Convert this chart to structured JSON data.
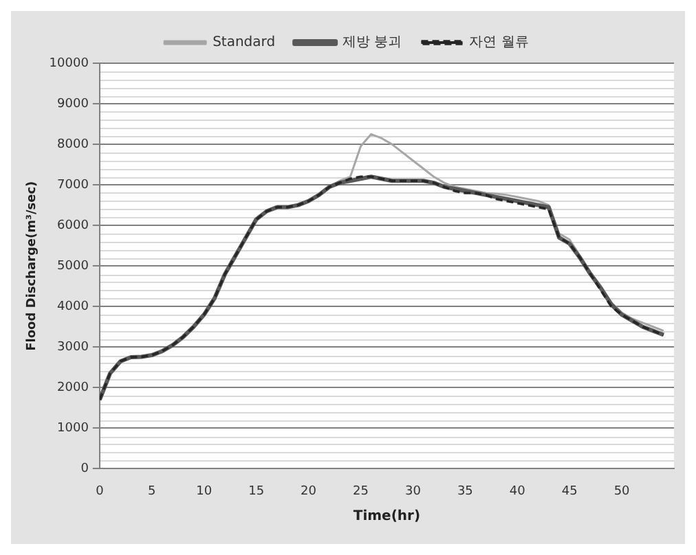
{
  "chart_data": {
    "type": "line",
    "xlabel": "Time(hr)",
    "ylabel": "Flood Discharge(m³/sec)",
    "x": [
      0,
      1,
      2,
      3,
      4,
      5,
      6,
      7,
      8,
      9,
      10,
      11,
      12,
      13,
      14,
      15,
      16,
      17,
      18,
      19,
      20,
      21,
      22,
      23,
      24,
      25,
      26,
      27,
      28,
      29,
      30,
      31,
      32,
      33,
      34,
      35,
      36,
      37,
      38,
      39,
      40,
      41,
      42,
      43,
      44,
      45,
      46,
      47,
      48,
      49,
      50,
      51,
      52,
      53,
      54
    ],
    "series": [
      {
        "name": "Standard",
        "color": "#a6a6a6",
        "line_style": "solid",
        "values": [
          1700,
          2350,
          2650,
          2750,
          2760,
          2800,
          2900,
          3050,
          3250,
          3500,
          3800,
          4200,
          4800,
          5250,
          5700,
          6150,
          6350,
          6450,
          6450,
          6500,
          6600,
          6750,
          6950,
          7100,
          7200,
          7950,
          8250,
          8150,
          8000,
          7800,
          7600,
          7400,
          7200,
          7050,
          6950,
          6900,
          6850,
          6800,
          6780,
          6750,
          6700,
          6650,
          6600,
          6500,
          5800,
          5650,
          5250,
          4850,
          4500,
          4100,
          3850,
          3700,
          3600,
          3500,
          3400
        ]
      },
      {
        "name": "제방 붕괴",
        "color": "#595959",
        "line_style": "solid",
        "values": [
          1700,
          2350,
          2650,
          2750,
          2760,
          2800,
          2900,
          3050,
          3250,
          3500,
          3800,
          4200,
          4800,
          5250,
          5700,
          6150,
          6350,
          6450,
          6450,
          6500,
          6600,
          6750,
          6950,
          7050,
          7100,
          7150,
          7200,
          7150,
          7100,
          7100,
          7100,
          7100,
          7050,
          6950,
          6900,
          6850,
          6800,
          6750,
          6700,
          6650,
          6600,
          6550,
          6500,
          6450,
          5700,
          5550,
          5200,
          4800,
          4450,
          4050,
          3800,
          3650,
          3500,
          3400,
          3300
        ]
      },
      {
        "name": "자연 월류",
        "color": "#262626",
        "line_style": "dashed",
        "values": [
          1700,
          2350,
          2650,
          2750,
          2760,
          2800,
          2900,
          3050,
          3250,
          3500,
          3800,
          4200,
          4800,
          5250,
          5700,
          6150,
          6350,
          6450,
          6450,
          6500,
          6600,
          6750,
          6950,
          7050,
          7150,
          7200,
          7200,
          7150,
          7100,
          7100,
          7100,
          7100,
          7050,
          6950,
          6850,
          6800,
          6800,
          6750,
          6650,
          6600,
          6550,
          6500,
          6450,
          6400,
          5700,
          5550,
          5200,
          4800,
          4400,
          4000,
          3800,
          3650,
          3500,
          3400,
          3300
        ]
      }
    ],
    "xlim": [
      0,
      55
    ],
    "xticks": [
      0,
      5,
      10,
      15,
      20,
      25,
      30,
      35,
      40,
      45,
      50
    ],
    "ylim": [
      0,
      10000
    ],
    "yticks": [
      0,
      1000,
      2000,
      3000,
      4000,
      5000,
      6000,
      7000,
      8000,
      9000,
      10000
    ],
    "grid": "y",
    "legend": "top",
    "marker": "none"
  }
}
